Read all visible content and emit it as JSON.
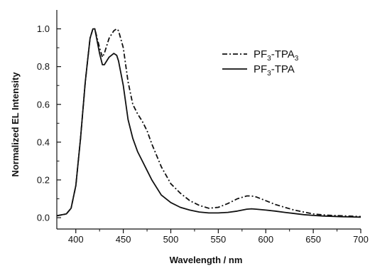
{
  "chart_data": {
    "type": "line",
    "title": "",
    "xlabel": "Wavelength / nm",
    "ylabel": "Normalized EL Intensity",
    "xlim": [
      380,
      700
    ],
    "ylim": [
      -0.06,
      1.1
    ],
    "xticks": [
      400,
      450,
      500,
      550,
      600,
      650,
      700
    ],
    "yticks": [
      0.0,
      0.2,
      0.4,
      0.6,
      0.8,
      1.0
    ],
    "xtick_labels": [
      "400",
      "450",
      "500",
      "550",
      "600",
      "650",
      "700"
    ],
    "ytick_labels": [
      "0.0",
      "0.2",
      "0.4",
      "0.6",
      "0.8",
      "1.0"
    ],
    "grid": false,
    "legend_position": "top-right",
    "series": [
      {
        "name": "PF3-TPA3",
        "legend_main_1": "PF",
        "legend_sub_1": "3",
        "legend_main_2": "-TPA",
        "legend_sub_2": "3",
        "style": "dash-dot",
        "color": "#111111",
        "x": [
          380,
          390,
          395,
          400,
          405,
          410,
          415,
          418,
          420,
          425,
          428,
          430,
          435,
          440,
          443,
          445,
          450,
          455,
          460,
          465,
          470,
          475,
          480,
          490,
          500,
          510,
          520,
          530,
          540,
          550,
          560,
          570,
          580,
          585,
          590,
          600,
          610,
          620,
          630,
          640,
          650,
          660,
          670,
          680,
          690,
          700
        ],
        "y": [
          0.01,
          0.02,
          0.05,
          0.17,
          0.42,
          0.72,
          0.95,
          1.0,
          1.0,
          0.9,
          0.85,
          0.87,
          0.95,
          0.99,
          1.0,
          0.99,
          0.9,
          0.72,
          0.6,
          0.55,
          0.51,
          0.46,
          0.39,
          0.27,
          0.18,
          0.13,
          0.09,
          0.065,
          0.05,
          0.055,
          0.075,
          0.1,
          0.115,
          0.115,
          0.11,
          0.09,
          0.07,
          0.055,
          0.04,
          0.03,
          0.02,
          0.015,
          0.012,
          0.01,
          0.008,
          0.006
        ]
      },
      {
        "name": "PF3-TPA",
        "legend_main_1": "PF",
        "legend_sub_1": "3",
        "legend_main_2": "-TPA",
        "legend_sub_2": "",
        "style": "solid",
        "color": "#111111",
        "x": [
          380,
          390,
          395,
          400,
          405,
          410,
          415,
          418,
          420,
          425,
          428,
          430,
          435,
          440,
          443,
          445,
          450,
          455,
          460,
          465,
          470,
          475,
          480,
          490,
          500,
          510,
          520,
          530,
          540,
          550,
          560,
          570,
          580,
          585,
          590,
          600,
          610,
          620,
          630,
          640,
          650,
          660,
          670,
          680,
          690,
          700
        ],
        "y": [
          0.01,
          0.02,
          0.05,
          0.17,
          0.42,
          0.72,
          0.95,
          1.0,
          1.0,
          0.87,
          0.81,
          0.81,
          0.85,
          0.87,
          0.86,
          0.83,
          0.7,
          0.52,
          0.42,
          0.35,
          0.3,
          0.25,
          0.2,
          0.12,
          0.08,
          0.055,
          0.04,
          0.03,
          0.025,
          0.025,
          0.028,
          0.035,
          0.045,
          0.047,
          0.045,
          0.04,
          0.035,
          0.028,
          0.022,
          0.016,
          0.012,
          0.009,
          0.007,
          0.005,
          0.004,
          0.003
        ]
      }
    ]
  }
}
